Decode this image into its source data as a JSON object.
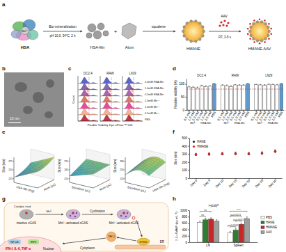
{
  "figure": {
    "a": {
      "label": "a",
      "hsa": "HSA",
      "mn": "Mn²⁺",
      "process": "Bio-mineralization",
      "condition": "pH 10.0, 34°C, 2 h",
      "hsa_mn": "HSA-Mn",
      "plus": "+",
      "alum": "Alum",
      "squalene": "squalene",
      "hmane": "HMANE",
      "aav": "AAV",
      "mix": "RT, 3-5 s",
      "product": "HMANE-AAV"
    },
    "b": {
      "label": "b",
      "scale_bar": "10 nm"
    },
    "c": {
      "label": "c",
      "columns": [
        "DC2.4",
        "RAW",
        "L929"
      ],
      "rows": [
        "2.0mM HSA-Mn",
        "1.0mM HSA-Mn",
        "0.5mM HSA-Mn",
        "2.0mM Mn²⁺",
        "1.0mM Mn²⁺",
        "0.5mM Mn²⁺",
        "PBS"
      ],
      "gate": "Live cell",
      "xlabel": "Fixable Viability Dye eFluor™ 506",
      "ylabel": "Count"
    },
    "e": {
      "label": "e",
      "plots": [
        {
          "z": "Size (nm)",
          "x": "HSA-Mn (mg)",
          "y": "Alum (μL)",
          "zticks": [
            225,
            250,
            275
          ]
        },
        {
          "z": "Size (nm)",
          "x": "Squalene (μL)",
          "y": "Alum (μL)",
          "zticks": [
            210,
            240,
            270
          ]
        },
        {
          "z": "Size (nm)",
          "x": "Squalene (μL)",
          "y": "HSA-Mn (mg)",
          "zticks": [
            220,
            250,
            280
          ]
        }
      ]
    },
    "g": {
      "label": "g",
      "triad": "Catalytic triad",
      "inactive": "inactive cGAS",
      "mn": "Mn²⁺",
      "activated": "Mn²⁺-activated cGAS",
      "cyclization": "Cyclization",
      "tbk": "TBK-1",
      "sting": "STING",
      "er": "ER",
      "nfkb": "NF-κB",
      "irf": "IRF3",
      "cytokines": "IFN-I, IL-6, TNF-α",
      "nuclear": "Nuclear",
      "cytoplasm": "Cytoplasm"
    }
  },
  "chart_data": [
    {
      "type": "bar",
      "label": "d",
      "ylabel": "Relative viability (%)",
      "groups": [
        "DC2.4",
        "RAW",
        "L929"
      ],
      "subgroups": [
        "Mn²⁺",
        "HSA-Mn"
      ],
      "categories": [
        "0.5 mM",
        "1.0 mM",
        "2.0 mM",
        "0.5 mM",
        "1.0 mM",
        "2.0 mM",
        "PBS",
        "0.5 mM",
        "1.0 mM",
        "2.0 mM",
        "0.5 mM",
        "1.0 mM",
        "2.0 mM",
        "PBS",
        "0.5 mM",
        "1.0 mM",
        "2.0 mM",
        "0.5 mM",
        "1.0 mM",
        "2.0 mM",
        "PBS"
      ],
      "values": [
        88,
        86,
        84,
        92,
        90,
        91,
        100,
        95,
        93,
        90,
        96,
        94,
        95,
        100,
        97,
        96,
        94,
        98,
        97,
        96,
        100
      ],
      "errors": [
        3,
        3,
        4,
        3,
        3,
        2,
        2,
        2,
        3,
        3,
        2,
        3,
        2,
        2,
        2,
        2,
        3,
        2,
        2,
        2,
        2
      ],
      "colors": [
        "#ffffff",
        "#ffffff",
        "#ffffff",
        "#ffffff",
        "#ffffff",
        "#ffffff",
        "#5b9bd5",
        "#ffffff",
        "#ffffff",
        "#ffffff",
        "#ffffff",
        "#ffffff",
        "#ffffff",
        "#5b9bd5",
        "#ffffff",
        "#ffffff",
        "#ffffff",
        "#ffffff",
        "#ffffff",
        "#ffffff",
        "#5b9bd5"
      ],
      "threshold": 80,
      "ylim": [
        0,
        120
      ],
      "yticks": [
        0,
        50,
        100
      ]
    },
    {
      "type": "scatter",
      "label": "f",
      "ylabel": "Size (nm)",
      "categories": [
        "Day 0",
        "Day 5",
        "Day 10",
        "Day 15",
        "Day 20",
        "Day 25",
        "Day 30"
      ],
      "series": [
        {
          "name": "HANE",
          "color": "#222222",
          "marker": "circle",
          "values": [
            290,
            295,
            300,
            305,
            300,
            310,
            330
          ],
          "errors": [
            15,
            18,
            15,
            20,
            15,
            18,
            20
          ]
        },
        {
          "name": "HMANE",
          "color": "#d62728",
          "marker": "circle",
          "values": [
            295,
            300,
            305,
            300,
            305,
            305,
            335
          ],
          "errors": [
            15,
            15,
            18,
            15,
            18,
            15,
            18
          ]
        }
      ],
      "ylim": [
        0,
        500
      ],
      "yticks": [
        0,
        100,
        200,
        300,
        400,
        500
      ],
      "legend": "top-left"
    },
    {
      "type": "bar",
      "label": "h",
      "ylabel": "2,3-cGAMP (pg mL⁻¹)",
      "categories": [
        "LN",
        "Spleen"
      ],
      "series": [
        {
          "name": "PBS",
          "color": "#ffffff",
          "values": [
            620,
            300
          ],
          "errors": [
            40,
            30
          ]
        },
        {
          "name": "HANE",
          "color": "#2e7d32",
          "values": [
            700,
            380
          ],
          "errors": [
            50,
            40
          ]
        },
        {
          "name": "HMANE",
          "color": "#c62828",
          "values": [
            720,
            560
          ],
          "errors": [
            40,
            40
          ]
        },
        {
          "name": "AAV",
          "color": "#9e9e9e",
          "values": [
            660,
            740
          ],
          "errors": [
            40,
            50
          ]
        }
      ],
      "annotations": [
        {
          "category": 0,
          "from": 0,
          "to": 1,
          "text": "ns"
        },
        {
          "category": 0,
          "from": 0,
          "to": 2,
          "text": "ns"
        },
        {
          "category": 0,
          "from": 2,
          "to": 3,
          "text": "p=0.0447"
        },
        {
          "category": 1,
          "from": 0,
          "to": 1,
          "text": "p=0.0105"
        },
        {
          "category": 1,
          "from": 1,
          "to": 2,
          "text": "p=0.0051"
        },
        {
          "category": 1,
          "from": 0,
          "to": 2,
          "text": "p=0.0121"
        },
        {
          "category": 1,
          "from": 0,
          "to": 3,
          "text": "****"
        }
      ],
      "ylim": [
        0,
        1000
      ],
      "yticks": [
        0,
        200,
        400,
        600,
        800,
        1000
      ],
      "legend": "right"
    }
  ]
}
